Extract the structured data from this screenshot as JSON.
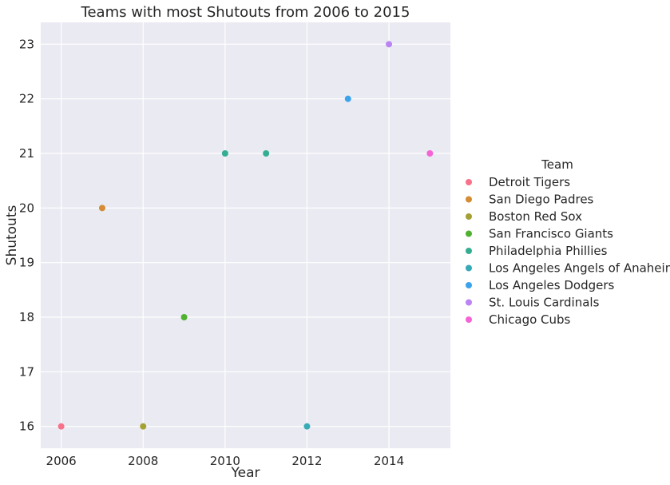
{
  "chart_data": {
    "type": "scatter",
    "title": "Teams with most Shutouts from 2006 to 2015",
    "xlabel": "Year",
    "ylabel": "Shutouts",
    "xlim": [
      2005.5,
      2015.5
    ],
    "ylim": [
      15.6,
      23.4
    ],
    "xticks": [
      2006,
      2008,
      2010,
      2012,
      2014
    ],
    "yticks": [
      16,
      17,
      18,
      19,
      20,
      21,
      22,
      23
    ],
    "grid": true,
    "legend_title": "Team",
    "legend_position": "right",
    "series": [
      {
        "name": "Detroit Tigers",
        "color": "#f77189",
        "points": [
          {
            "x": 2006,
            "y": 16
          }
        ]
      },
      {
        "name": "San Diego Padres",
        "color": "#d58c32",
        "points": [
          {
            "x": 2007,
            "y": 20
          }
        ]
      },
      {
        "name": "Boston Red Sox",
        "color": "#a4a031",
        "points": [
          {
            "x": 2008,
            "y": 16
          }
        ]
      },
      {
        "name": "San Francisco Giants",
        "color": "#50b131",
        "points": [
          {
            "x": 2009,
            "y": 18
          }
        ]
      },
      {
        "name": "Philadelphia Phillies",
        "color": "#34ae91",
        "points": [
          {
            "x": 2010,
            "y": 21
          },
          {
            "x": 2011,
            "y": 21
          }
        ]
      },
      {
        "name": "Los Angeles Angels of Anaheim",
        "color": "#37abb5",
        "points": [
          {
            "x": 2012,
            "y": 16
          }
        ]
      },
      {
        "name": "Los Angeles Dodgers",
        "color": "#3ba3ec",
        "points": [
          {
            "x": 2013,
            "y": 22
          }
        ]
      },
      {
        "name": "St. Louis Cardinals",
        "color": "#bb83f4",
        "points": [
          {
            "x": 2014,
            "y": 23
          }
        ]
      },
      {
        "name": "Chicago Cubs",
        "color": "#f564d4",
        "points": [
          {
            "x": 2015,
            "y": 21
          }
        ]
      }
    ]
  },
  "style": {
    "plot_background": "#eaeaf2",
    "grid_color": "#ffffff"
  }
}
